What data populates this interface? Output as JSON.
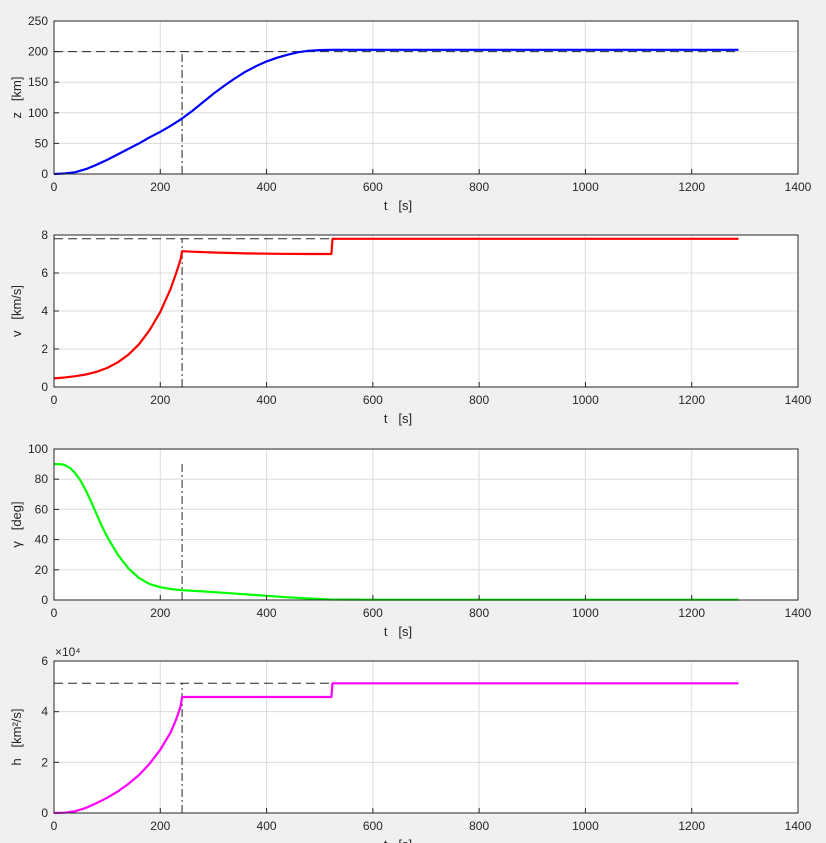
{
  "figure": {
    "background": "#f0f0f0",
    "axes_background": "#ffffff",
    "grid_color": "#dcdcdc",
    "reference_line_color": "#262626"
  },
  "chart_data": [
    {
      "type": "line",
      "title": "",
      "xlabel": "t   [s]",
      "ylabel": "z   [km]",
      "exponent_label": "",
      "xlim": [
        0,
        1400
      ],
      "ylim": [
        0,
        250
      ],
      "xticks": [
        0,
        200,
        400,
        600,
        800,
        1000,
        1200,
        1400
      ],
      "yticks": [
        0,
        50,
        100,
        150,
        200,
        250
      ],
      "grid": true,
      "series": [
        {
          "color": "#0000ff",
          "x": [
            0,
            20,
            40,
            60,
            80,
            100,
            120,
            140,
            160,
            180,
            200,
            220,
            240,
            260,
            280,
            300,
            320,
            340,
            360,
            380,
            400,
            420,
            440,
            460,
            480,
            500,
            520,
            600,
            800,
            1000,
            1200,
            1288
          ],
          "y": [
            0,
            0.8,
            3,
            8,
            15,
            23,
            32,
            41,
            50,
            60,
            69,
            79,
            90,
            103,
            117,
            131,
            144,
            156,
            167,
            176,
            184,
            190,
            195,
            199,
            201.5,
            202.5,
            203,
            203,
            203,
            203,
            203,
            203
          ]
        }
      ],
      "reference_lines": [
        {
          "style": "dashed",
          "x": [
            0,
            1288
          ],
          "y": [
            200,
            200
          ]
        },
        {
          "style": "dashdot",
          "x": [
            241,
            241
          ],
          "y": [
            0,
            200
          ]
        }
      ]
    },
    {
      "type": "line",
      "title": "",
      "xlabel": "t   [s]",
      "ylabel": "v   [km/s]",
      "exponent_label": "",
      "xlim": [
        0,
        1400
      ],
      "ylim": [
        0,
        8
      ],
      "xticks": [
        0,
        200,
        400,
        600,
        800,
        1000,
        1200,
        1400
      ],
      "yticks": [
        0,
        2,
        4,
        6,
        8
      ],
      "grid": true,
      "series": [
        {
          "color": "#ff0000",
          "x": [
            0,
            20,
            40,
            60,
            80,
            100,
            120,
            140,
            160,
            180,
            200,
            220,
            230,
            238,
            241,
            260,
            300,
            360,
            420,
            480,
            522,
            524,
            600,
            800,
            1000,
            1200,
            1288
          ],
          "y": [
            0.45,
            0.5,
            0.57,
            0.66,
            0.8,
            1.0,
            1.3,
            1.7,
            2.25,
            3.0,
            3.95,
            5.2,
            6.0,
            6.7,
            7.15,
            7.12,
            7.08,
            7.03,
            7.01,
            7.0,
            7.0,
            7.8,
            7.8,
            7.8,
            7.8,
            7.8,
            7.8
          ]
        }
      ],
      "reference_lines": [
        {
          "style": "dashed",
          "x": [
            0,
            1288
          ],
          "y": [
            7.8,
            7.8
          ]
        },
        {
          "style": "dashdot",
          "x": [
            241,
            241
          ],
          "y": [
            0,
            7.8
          ]
        }
      ]
    },
    {
      "type": "line",
      "title": "",
      "xlabel": "t   [s]",
      "ylabel": "γ   [deg]",
      "exponent_label": "",
      "xlim": [
        0,
        1400
      ],
      "ylim": [
        0,
        100
      ],
      "xticks": [
        0,
        200,
        400,
        600,
        800,
        1000,
        1200,
        1400
      ],
      "yticks": [
        0,
        20,
        40,
        60,
        80,
        100
      ],
      "grid": true,
      "series": [
        {
          "color": "#00ff00",
          "x": [
            0,
            10,
            20,
            30,
            40,
            50,
            60,
            70,
            80,
            90,
            100,
            120,
            140,
            160,
            180,
            200,
            220,
            241,
            280,
            320,
            360,
            400,
            440,
            480,
            520,
            600,
            800,
            1000,
            1200,
            1288
          ],
          "y": [
            90,
            90,
            89.5,
            87.5,
            84,
            79,
            72.5,
            65,
            57,
            49,
            42,
            30,
            21,
            14.5,
            10.5,
            8.5,
            7.2,
            6.5,
            5.7,
            4.8,
            3.8,
            2.8,
            1.8,
            1.0,
            0.3,
            0.2,
            0.2,
            0.2,
            0.2,
            0.2
          ]
        }
      ],
      "reference_lines": [
        {
          "style": "dashed",
          "x": [
            0,
            1288
          ],
          "y": [
            0,
            0
          ]
        },
        {
          "style": "dashdot",
          "x": [
            241,
            241
          ],
          "y": [
            0,
            90
          ]
        }
      ]
    },
    {
      "type": "line",
      "title": "",
      "xlabel": "t   [s]",
      "ylabel": "h   [km²/s]",
      "exponent_label": "×10⁴",
      "xlim": [
        0,
        1400
      ],
      "ylim": [
        0,
        60000
      ],
      "xticks": [
        0,
        200,
        400,
        600,
        800,
        1000,
        1200,
        1400
      ],
      "yticks": [
        0,
        20000,
        40000,
        60000
      ],
      "ytick_labels": [
        "0",
        "2",
        "4",
        "6"
      ],
      "grid": true,
      "series": [
        {
          "color": "#ff00ff",
          "x": [
            0,
            20,
            40,
            60,
            80,
            100,
            120,
            140,
            160,
            180,
            200,
            220,
            230,
            238,
            241,
            300,
            400,
            500,
            522,
            524,
            600,
            800,
            1000,
            1200,
            1288
          ],
          "y": [
            0,
            120,
            700,
            2000,
            3900,
            6000,
            8500,
            11500,
            15000,
            19500,
            25000,
            32000,
            37000,
            42000,
            45800,
            45800,
            45800,
            45800,
            45800,
            51200,
            51200,
            51200,
            51200,
            51200,
            51200
          ]
        }
      ],
      "reference_lines": [
        {
          "style": "dashed",
          "x": [
            0,
            1288
          ],
          "y": [
            51200,
            51200
          ]
        },
        {
          "style": "dashdot",
          "x": [
            241,
            241
          ],
          "y": [
            0,
            51200
          ]
        }
      ]
    }
  ]
}
